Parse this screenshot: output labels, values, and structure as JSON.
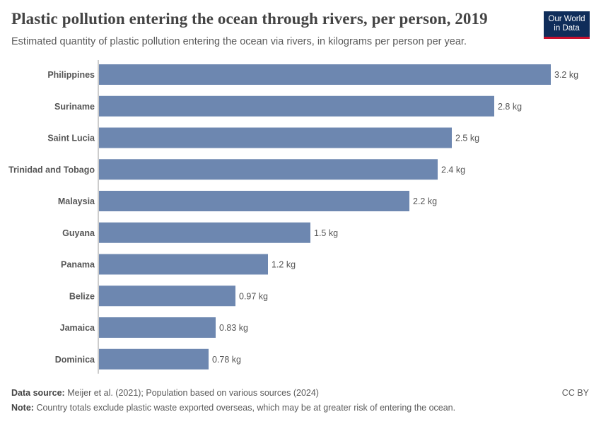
{
  "header": {
    "title": "Plastic pollution entering the ocean through rivers, per person, 2019",
    "subtitle": "Estimated quantity of plastic pollution entering the ocean via rivers, in kilograms per person per year."
  },
  "logo": {
    "line1": "Our World",
    "line2": "in Data"
  },
  "chart_data": {
    "type": "bar",
    "orientation": "horizontal",
    "categories": [
      "Philippines",
      "Suriname",
      "Saint Lucia",
      "Trinidad and Tobago",
      "Malaysia",
      "Guyana",
      "Panama",
      "Belize",
      "Jamaica",
      "Dominica"
    ],
    "values": [
      3.2,
      2.8,
      2.5,
      2.4,
      2.2,
      1.5,
      1.2,
      0.97,
      0.83,
      0.78
    ],
    "value_labels": [
      "3.2 kg",
      "2.8 kg",
      "2.5 kg",
      "2.4 kg",
      "2.2 kg",
      "1.5 kg",
      "1.2 kg",
      "0.97 kg",
      "0.83 kg",
      "0.78 kg"
    ],
    "xlim": [
      0,
      3.2
    ],
    "grid": false,
    "bar_color": "#6d87b0"
  },
  "footer": {
    "source_label": "Data source:",
    "source_text": "Meijer et al. (2021); Population based on various sources (2024)",
    "note_label": "Note:",
    "note_text": "Country totals exclude plastic waste exported overseas, which may be at greater risk of entering the ocean.",
    "license": "CC BY"
  }
}
